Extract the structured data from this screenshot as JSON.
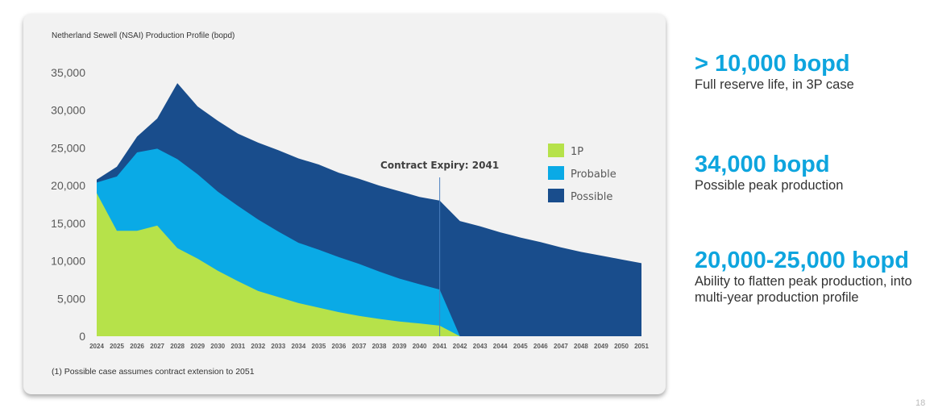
{
  "chart_data": {
    "type": "area",
    "title": "Netherland Sewell (NSAI) Production Profile (bopd)",
    "xlabel": "",
    "ylabel": "",
    "ylim": [
      0,
      35000
    ],
    "yticks": [
      0,
      5000,
      10000,
      15000,
      20000,
      25000,
      30000,
      35000
    ],
    "ytick_labels": [
      "0",
      "5,000",
      "10,000",
      "15,000",
      "20,000",
      "25,000",
      "30,000",
      "35,000"
    ],
    "x": [
      2024,
      2025,
      2026,
      2027,
      2028,
      2029,
      2030,
      2031,
      2032,
      2033,
      2034,
      2035,
      2036,
      2037,
      2038,
      2039,
      2040,
      2041,
      2042,
      2043,
      2044,
      2045,
      2046,
      2047,
      2048,
      2049,
      2050,
      2051
    ],
    "stacked": true,
    "series": [
      {
        "name": "1P",
        "color": "#b6e24a",
        "values": [
          19000,
          14000,
          14000,
          14700,
          11700,
          10300,
          8700,
          7300,
          6000,
          5200,
          4400,
          3800,
          3200,
          2700,
          2300,
          1950,
          1700,
          1400,
          0,
          0,
          0,
          0,
          0,
          0,
          0,
          0,
          0,
          0
        ]
      },
      {
        "name": "Probable",
        "color": "#0aaae6",
        "values": [
          1400,
          7200,
          10400,
          10200,
          11800,
          11200,
          10500,
          10000,
          9500,
          8700,
          8000,
          7700,
          7300,
          6900,
          6300,
          5700,
          5200,
          4800,
          0,
          0,
          0,
          0,
          0,
          0,
          0,
          0,
          0,
          0
        ]
      },
      {
        "name": "Possible",
        "color": "#194d8c",
        "values": [
          400,
          1300,
          2100,
          4000,
          10100,
          9000,
          9400,
          9600,
          10200,
          10800,
          11200,
          11300,
          11200,
          11300,
          11400,
          11600,
          11600,
          11800,
          15300,
          14600,
          13800,
          13100,
          12500,
          11800,
          11200,
          10700,
          10200,
          9700
        ]
      }
    ],
    "annotations": [
      {
        "text": "Contract Expiry: 2041",
        "x": 2041
      }
    ],
    "legend_position": "inside-right",
    "grid": false
  },
  "footnote": "(1) Possible case assumes contract extension to 2051",
  "stats": [
    {
      "value": "> 10,000 bopd",
      "description": "Full reserve life, in 3P case"
    },
    {
      "value": "34,000 bopd",
      "description": "Possible peak production"
    },
    {
      "value": "20,000-25,000 bopd",
      "description": "Ability to flatten peak production, into multi-year production profile"
    }
  ],
  "page_number": "18"
}
